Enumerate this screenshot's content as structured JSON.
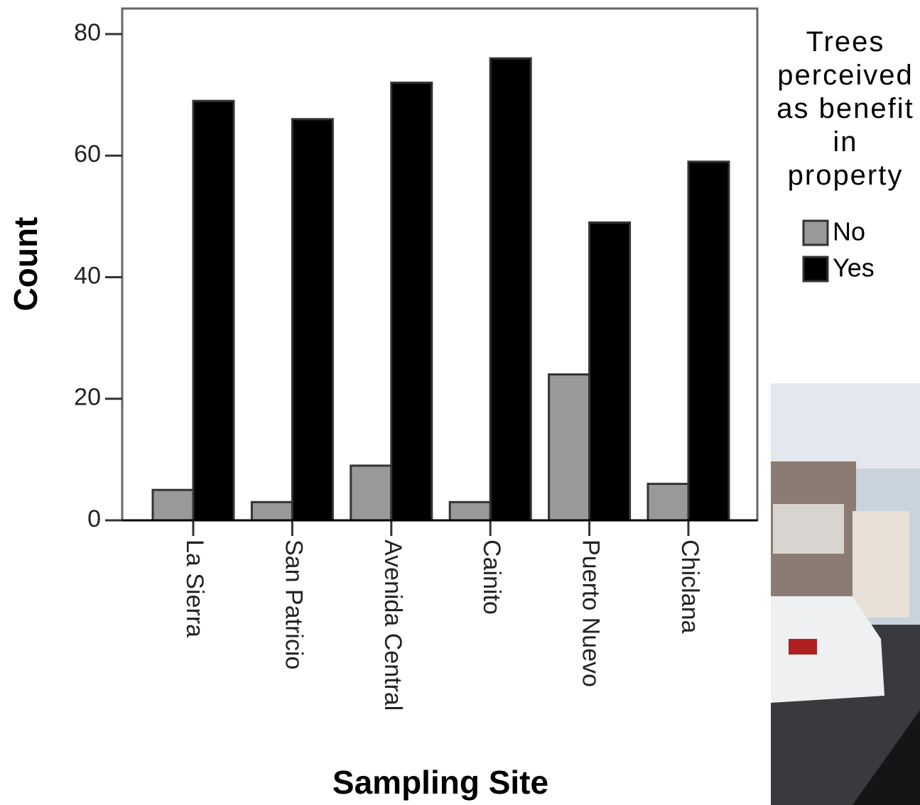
{
  "chart_data": {
    "type": "bar",
    "x_label": "Sampling Site",
    "y_label": "Count",
    "legend_title": "Trees perceived as benefit in property",
    "legend_position": "right",
    "categories": [
      "La Sierra",
      "San Patricio",
      "Avenida Central",
      "Cainito",
      "Puerto Nuevo",
      "Chiclana"
    ],
    "series": [
      {
        "name": "No",
        "color": "#999999",
        "values": [
          5,
          3,
          9,
          3,
          24,
          6
        ]
      },
      {
        "name": "Yes",
        "color": "#000000",
        "values": [
          69,
          66,
          72,
          76,
          49,
          59
        ]
      }
    ],
    "ylim": [
      0,
      84.2
    ],
    "yticks": [
      0,
      20,
      40,
      60,
      80
    ],
    "grid": false
  }
}
